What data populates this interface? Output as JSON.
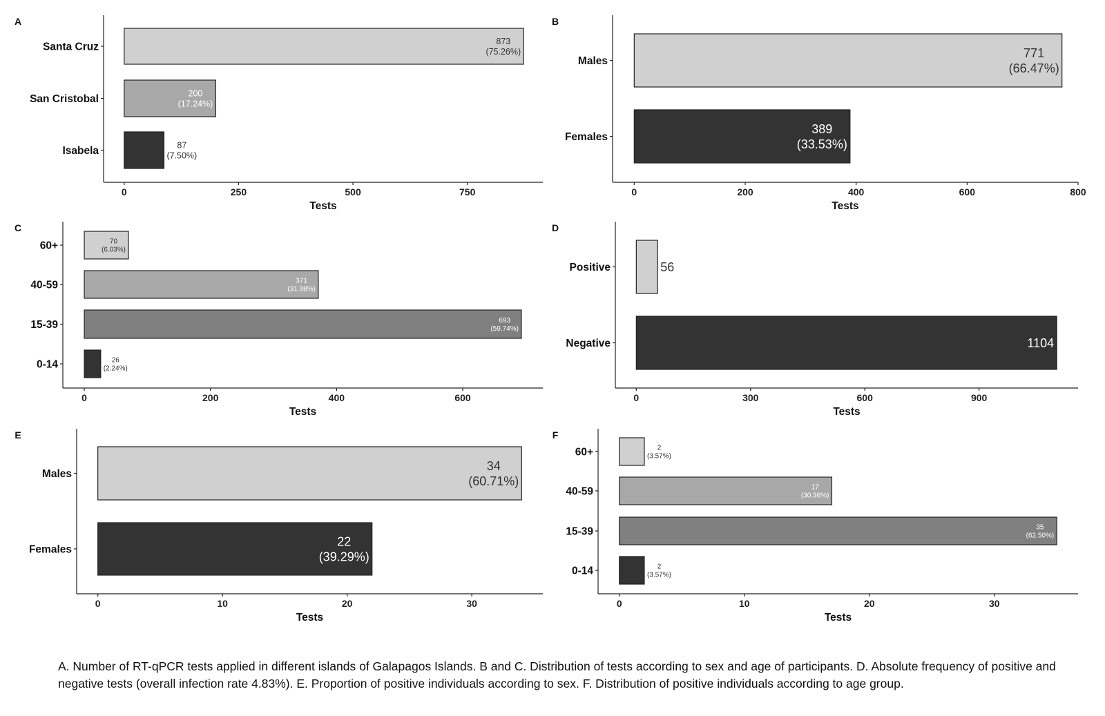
{
  "figure": {
    "caption": "A. Number of RT-qPCR tests applied in different islands of Galapagos Islands. B and C. Distribution of tests according to sex and age of participants. D. Absolute frequency of positive and negative tests (overall infection rate 4.83%). E. Proportion of positive individuals according to sex. F. Distribution of positive individuals according to age group."
  },
  "colors": {
    "light": "#d0d0d0",
    "mid": "#a8a8a8",
    "midDark": "#808080",
    "dark": "#333333",
    "outline": "#222222"
  },
  "chart_data": [
    {
      "panel": "A",
      "type": "bar",
      "orientation": "horizontal",
      "categories": [
        "Santa Cruz",
        "San Cristobal",
        "Isabela"
      ],
      "values": [
        873,
        200,
        87
      ],
      "data_labels": [
        [
          "873",
          "(75.26%)"
        ],
        [
          "200",
          "(17.24%)"
        ],
        [
          "87",
          "(7.50%)"
        ]
      ],
      "bar_colors": [
        "light",
        "mid",
        "dark"
      ],
      "label_colors": [
        "dark",
        "white",
        "dark"
      ],
      "label_inside": [
        true,
        true,
        false
      ],
      "xlabel": "Tests",
      "ylabel": "",
      "xlim": [
        -45,
        915
      ],
      "ticks": [
        0,
        250,
        500,
        750
      ],
      "tick_labels": [
        "0",
        "250",
        "500",
        "750"
      ]
    },
    {
      "panel": "B",
      "type": "bar",
      "orientation": "horizontal",
      "categories": [
        "Males",
        "Females"
      ],
      "values": [
        771,
        389
      ],
      "data_labels": [
        [
          "771",
          "(66.47%)"
        ],
        [
          "389",
          "(33.53%)"
        ]
      ],
      "bar_colors": [
        "light",
        "dark"
      ],
      "label_colors": [
        "dark",
        "white"
      ],
      "label_inside": [
        true,
        true
      ],
      "xlabel": "Tests",
      "ylabel": "",
      "xlim": [
        -39,
        800
      ],
      "ticks": [
        0,
        200,
        400,
        600,
        800
      ],
      "tick_labels": [
        "0",
        "200",
        "400",
        "600",
        "800"
      ]
    },
    {
      "panel": "C",
      "type": "bar",
      "orientation": "horizontal",
      "categories": [
        "60+",
        "40-59",
        "15-39",
        "0-14"
      ],
      "values": [
        70,
        371,
        693,
        26
      ],
      "data_labels": [
        [
          "70",
          "(6.03%)"
        ],
        [
          "371",
          "(31.98%)"
        ],
        [
          "693",
          "(59.74%)"
        ],
        [
          "26",
          "(2.24%)"
        ]
      ],
      "bar_colors": [
        "light",
        "mid",
        "midDark",
        "dark"
      ],
      "label_colors": [
        "dark",
        "white",
        "white",
        "dark"
      ],
      "label_inside": [
        true,
        true,
        true,
        false
      ],
      "xlabel": "Tests",
      "ylabel": "",
      "xlim": [
        -34,
        727
      ],
      "ticks": [
        0,
        200,
        400,
        600
      ],
      "tick_labels": [
        "0",
        "200",
        "400",
        "600"
      ]
    },
    {
      "panel": "D",
      "type": "bar",
      "orientation": "horizontal",
      "categories": [
        "Positive",
        "Negative"
      ],
      "values": [
        56,
        1104
      ],
      "data_labels": [
        [
          "56"
        ],
        [
          "1104"
        ]
      ],
      "bar_colors": [
        "light",
        "dark"
      ],
      "label_colors": [
        "dark",
        "white"
      ],
      "label_inside": [
        false,
        true
      ],
      "xlabel": "Tests",
      "ylabel": "",
      "xlim": [
        -55,
        1160
      ],
      "ticks": [
        0,
        300,
        600,
        900
      ],
      "tick_labels": [
        "0",
        "300",
        "600",
        "900"
      ]
    },
    {
      "panel": "E",
      "type": "bar",
      "orientation": "horizontal",
      "categories": [
        "Males",
        "Females"
      ],
      "values": [
        34,
        22
      ],
      "data_labels": [
        [
          "34",
          "(60.71%)"
        ],
        [
          "22",
          "(39.29%)"
        ]
      ],
      "bar_colors": [
        "light",
        "dark"
      ],
      "label_colors": [
        "dark",
        "white"
      ],
      "label_inside": [
        true,
        true
      ],
      "xlabel": "Tests",
      "ylabel": "",
      "xlim": [
        -1.7,
        35.7
      ],
      "ticks": [
        0,
        10,
        20,
        30
      ],
      "tick_labels": [
        "0",
        "10",
        "20",
        "30"
      ]
    },
    {
      "panel": "F",
      "type": "bar",
      "orientation": "horizontal",
      "categories": [
        "60+",
        "40-59",
        "15-39",
        "0-14"
      ],
      "values": [
        2,
        17,
        35,
        2
      ],
      "data_labels": [
        [
          "2",
          "(3.57%)"
        ],
        [
          "17",
          "(30.36%)"
        ],
        [
          "35",
          "(62.50%)"
        ],
        [
          "2",
          "(3.57%)"
        ]
      ],
      "bar_colors": [
        "light",
        "mid",
        "midDark",
        "dark"
      ],
      "label_colors": [
        "dark",
        "white",
        "white",
        "dark"
      ],
      "label_inside": [
        false,
        true,
        true,
        false
      ],
      "xlabel": "Tests",
      "ylabel": "",
      "xlim": [
        -1.7,
        36.7
      ],
      "ticks": [
        0,
        10,
        20,
        30
      ],
      "tick_labels": [
        "0",
        "10",
        "20",
        "30"
      ]
    }
  ]
}
